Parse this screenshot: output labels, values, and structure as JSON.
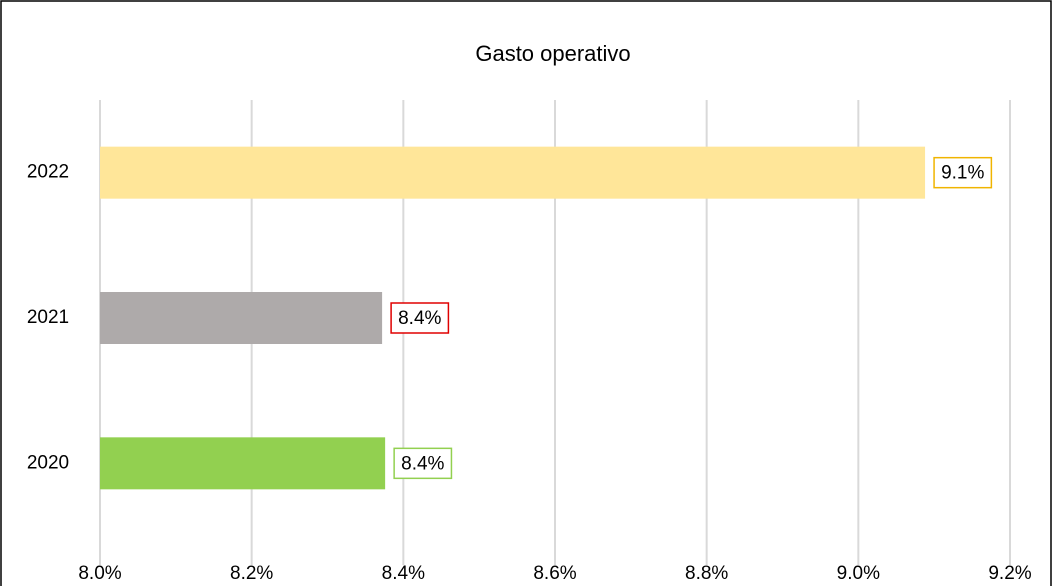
{
  "chart_data": {
    "type": "bar",
    "orientation": "horizontal",
    "title": "Gasto operativo",
    "categories": [
      "2020",
      "2021",
      "2022"
    ],
    "values": [
      8.376,
      8.372,
      9.088
    ],
    "value_labels": [
      "8.4%",
      "8.4%",
      "9.1%"
    ],
    "colors": [
      "#92d050",
      "#aeaaaa",
      "#ffe699"
    ],
    "label_border_colors": [
      "#92d050",
      "#e00000",
      "#f0b400"
    ],
    "xlim": [
      8.0,
      9.2
    ],
    "xticks": [
      {
        "value": 8.0,
        "label": "8.0%"
      },
      {
        "value": 8.2,
        "label": "8.2%"
      },
      {
        "value": 8.4,
        "label": "8.4%"
      },
      {
        "value": 8.6,
        "label": "8.6%"
      },
      {
        "value": 8.8,
        "label": "8.8%"
      },
      {
        "value": 9.0,
        "label": "9.0%"
      },
      {
        "value": 9.2,
        "label": "9.2%"
      }
    ],
    "grid": true
  }
}
